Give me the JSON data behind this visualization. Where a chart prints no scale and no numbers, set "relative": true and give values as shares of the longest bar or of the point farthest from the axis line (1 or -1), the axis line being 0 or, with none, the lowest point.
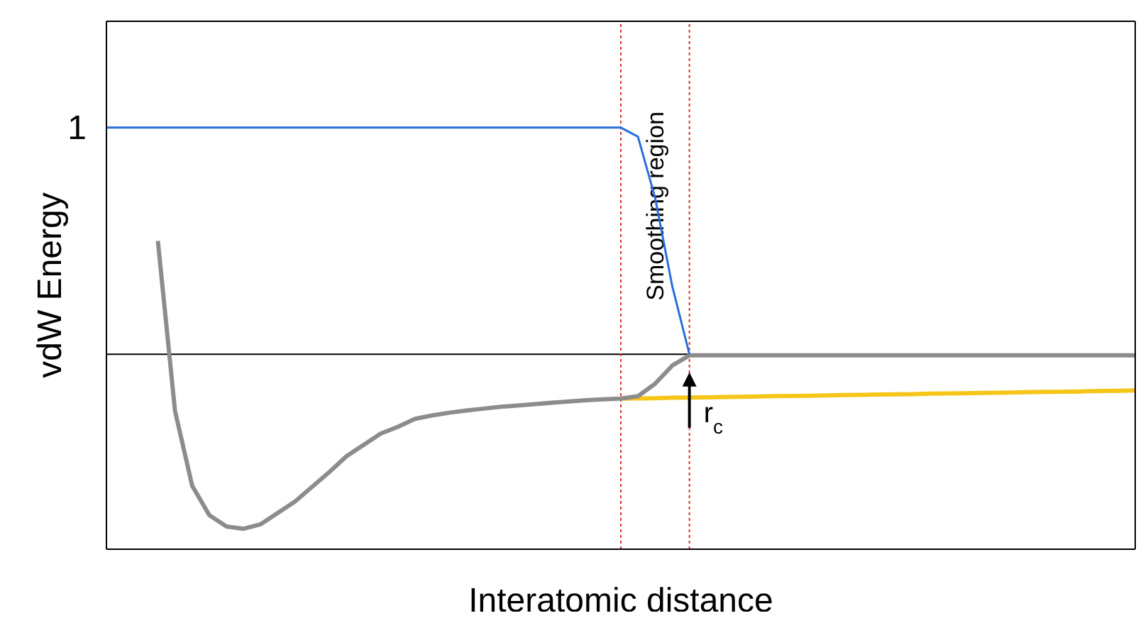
{
  "chart_data": {
    "type": "line",
    "xlabel": "Interatomic distance",
    "ylabel": "vdW Energy",
    "relative": true,
    "marker": "none",
    "line_style": "solid",
    "categories": [
      null,
      null,
      null,
      null,
      null,
      null,
      null,
      null,
      null,
      null,
      null,
      null,
      null,
      null,
      null,
      null,
      null,
      null,
      null,
      null,
      null,
      null,
      null,
      null,
      null,
      null,
      null,
      null,
      null,
      null,
      null,
      null,
      null,
      null,
      null,
      null,
      null,
      null,
      null,
      null,
      null,
      null,
      null,
      null,
      null,
      null,
      null,
      null,
      null,
      null,
      null,
      null,
      null,
      null,
      null,
      null,
      null,
      null,
      null,
      null,
      null
    ],
    "series": [
      {
        "color": "#f5c518",
        "values": [
          null,
          null,
          null,
          null,
          null,
          null,
          null,
          null,
          null,
          null,
          null,
          null,
          null,
          null,
          null,
          null,
          null,
          null,
          null,
          null,
          null,
          null,
          null,
          null,
          null,
          null,
          null,
          null,
          null,
          null,
          -0.196,
          -0.195,
          -0.194,
          -0.192,
          -0.191,
          -0.19,
          -0.189,
          -0.188,
          -0.186,
          -0.185,
          -0.184,
          -0.183,
          -0.182,
          -0.18,
          -0.179,
          -0.178,
          -0.177,
          -0.176,
          -0.174,
          -0.173,
          -0.172,
          -0.171,
          -0.17,
          -0.168,
          -0.167,
          -0.166,
          -0.165,
          -0.164,
          -0.162,
          -0.161,
          -0.16
        ]
      },
      {
        "color": "#8c8c8c",
        "values": [
          null,
          null,
          null,
          0.5,
          -0.25,
          -0.58,
          -0.71,
          -0.76,
          -0.77,
          -0.75,
          -0.7,
          -0.65,
          -0.585,
          -0.52,
          -0.45,
          -0.4,
          -0.35,
          -0.32,
          -0.285,
          -0.27,
          -0.258,
          -0.248,
          -0.24,
          -0.232,
          -0.226,
          -0.22,
          -0.214,
          -0.208,
          -0.203,
          -0.199,
          -0.196,
          -0.185,
          -0.13,
          -0.05,
          -0.005,
          -0.005,
          -0.005,
          -0.005,
          -0.005,
          -0.005,
          -0.005,
          -0.005,
          -0.005,
          -0.005,
          -0.005,
          -0.005,
          -0.005,
          -0.005,
          -0.005,
          -0.005,
          -0.005,
          -0.005,
          -0.005,
          -0.005,
          -0.005,
          -0.005,
          -0.005,
          -0.005,
          -0.005,
          -0.005,
          -0.005
        ]
      },
      {
        "color": "#2a6fdb",
        "values": [
          1,
          1,
          1,
          1,
          1,
          1,
          1,
          1,
          1,
          1,
          1,
          1,
          1,
          1,
          1,
          1,
          1,
          1,
          1,
          1,
          1,
          1,
          1,
          1,
          1,
          1,
          1,
          1,
          1,
          1,
          1,
          0.96,
          0.69,
          0.3,
          0,
          null,
          null,
          null,
          null,
          null,
          null,
          null,
          null,
          null,
          null,
          null,
          null,
          null,
          null,
          null,
          null,
          null,
          null,
          null,
          null,
          null,
          null,
          null,
          null,
          null,
          null
        ]
      }
    ],
    "annotations": [
      "r$_{c}$",
      "Smoothing region",
      "1"
    ]
  }
}
